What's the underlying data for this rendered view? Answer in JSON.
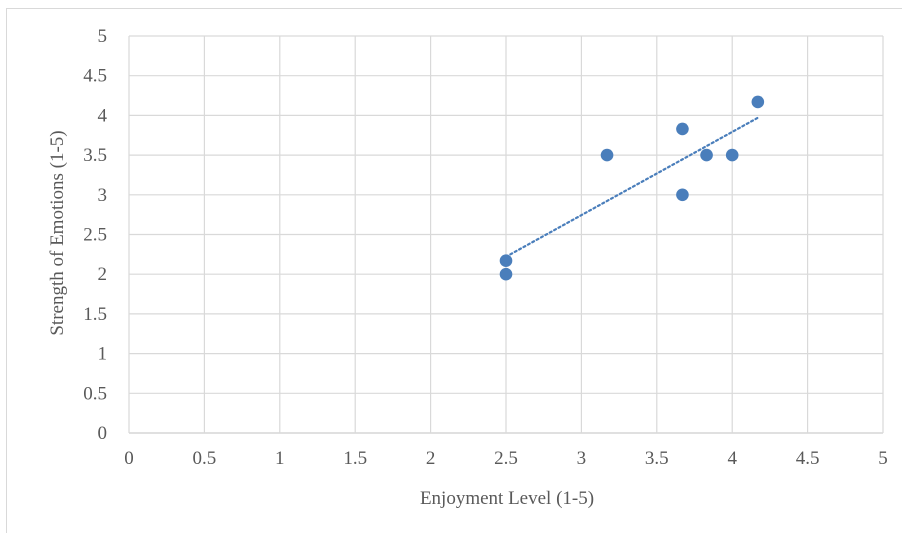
{
  "chart_data": {
    "type": "scatter",
    "title": "",
    "xlabel": "Enjoyment Level (1-5)",
    "ylabel": "Strength of Emotions (1-5)",
    "xlim": [
      0,
      5
    ],
    "ylim": [
      0,
      5
    ],
    "x_ticks": [
      "0",
      "0.5",
      "1",
      "1.5",
      "2",
      "2.5",
      "3",
      "3.5",
      "4",
      "4.5",
      "5"
    ],
    "y_ticks": [
      "0",
      "0.5",
      "1",
      "1.5",
      "2",
      "2.5",
      "3",
      "3.5",
      "4",
      "4.5",
      "5"
    ],
    "grid": true,
    "legend": "none",
    "series": [
      {
        "marker_color": "#4a7ebb",
        "points": [
          {
            "x": 2.5,
            "y": 2.17
          },
          {
            "x": 2.5,
            "y": 2.0
          },
          {
            "x": 3.17,
            "y": 3.5
          },
          {
            "x": 3.67,
            "y": 3.83
          },
          {
            "x": 3.67,
            "y": 3.0
          },
          {
            "x": 3.83,
            "y": 3.5
          },
          {
            "x": 4.0,
            "y": 3.5
          },
          {
            "x": 4.17,
            "y": 4.17
          }
        ]
      }
    ],
    "trendline": {
      "type": "linear",
      "style": "dotted",
      "color": "#4a7ebb",
      "from": {
        "x": 2.5,
        "y": 2.22
      },
      "to": {
        "x": 4.17,
        "y": 3.97
      }
    }
  }
}
